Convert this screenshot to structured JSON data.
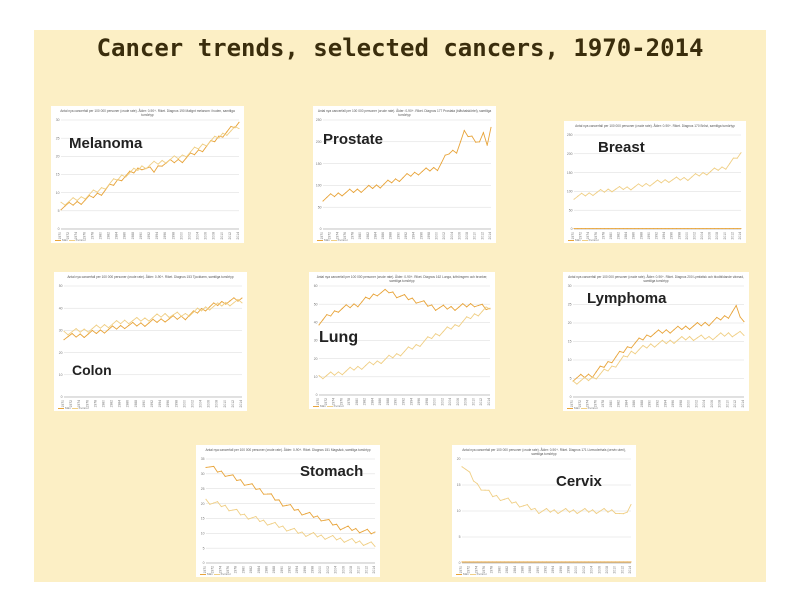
{
  "title": "Cancer trends, selected cancers, 1970-2014",
  "colors": {
    "men": "#e8a43a",
    "women": "#f0cf85",
    "background": "#fcefc5",
    "title": "#3a2d0c"
  },
  "legend": {
    "men": "Män",
    "women": "Kvinnor"
  },
  "chart_data": [
    {
      "id": "melanoma",
      "type": "line",
      "label": "Melanoma",
      "subtitle": "Antal nya cancerfall per 100 000 personer (crude rate). Ålder: 0-90+. Riket. Diagnos 190 Malignt melanom i huden, samtliga tumörtyp",
      "x_range": [
        1970,
        2014
      ],
      "ylim": [
        0,
        30
      ],
      "yticks": [
        0,
        5,
        10,
        15,
        20,
        25,
        30
      ],
      "series": [
        {
          "name": "Män",
          "keypoints": [
            [
              1970,
              6
            ],
            [
              1975,
              7.5
            ],
            [
              1980,
              10
            ],
            [
              1985,
              14
            ],
            [
              1990,
              17
            ],
            [
              1993,
              16
            ],
            [
              1995,
              18
            ],
            [
              2000,
              19
            ],
            [
              2005,
              22
            ],
            [
              2010,
              26
            ],
            [
              2014,
              29
            ]
          ]
        },
        {
          "name": "Kvinnor",
          "keypoints": [
            [
              1970,
              7
            ],
            [
              1975,
              8.5
            ],
            [
              1980,
              11
            ],
            [
              1985,
              14.5
            ],
            [
              1990,
              17
            ],
            [
              1995,
              18.5
            ],
            [
              2000,
              20
            ],
            [
              2005,
              23
            ],
            [
              2010,
              26
            ],
            [
              2014,
              28
            ]
          ]
        }
      ]
    },
    {
      "id": "prostate",
      "type": "line",
      "label": "Prostate",
      "subtitle": "Antal nya cancerfall per 100 000 personer (crude rate). Ålder: 0-90+. Riket. Diagnos 177 Prostata (blåshalskörtel), samtliga tumörtyp",
      "x_range": [
        1970,
        2014
      ],
      "ylim": [
        0,
        250
      ],
      "yticks": [
        0,
        50,
        100,
        150,
        200,
        250
      ],
      "series": [
        {
          "name": "Män",
          "keypoints": [
            [
              1970,
              70
            ],
            [
              1975,
              82
            ],
            [
              1980,
              90
            ],
            [
              1985,
              100
            ],
            [
              1990,
              115
            ],
            [
              1995,
              130
            ],
            [
              2000,
              140
            ],
            [
              2003,
              175
            ],
            [
              2005,
              180
            ],
            [
              2007,
              220
            ],
            [
              2009,
              210
            ],
            [
              2011,
              200
            ],
            [
              2012,
              215
            ],
            [
              2013,
              195
            ],
            [
              2014,
              230
            ]
          ]
        }
      ]
    },
    {
      "id": "breast",
      "type": "line",
      "label": "Breast",
      "subtitle": "Antal nya cancerfall per 100 000 personer (crude rate). Ålder: 0-90+. Riket. Diagnos 170 Bröst, samtliga tumörtyp",
      "x_range": [
        1970,
        2014
      ],
      "ylim": [
        0,
        250
      ],
      "yticks": [
        0,
        50,
        100,
        150,
        200,
        250
      ],
      "series": [
        {
          "name": "Kvinnor",
          "keypoints": [
            [
              1970,
              85
            ],
            [
              1975,
              95
            ],
            [
              1980,
              105
            ],
            [
              1985,
              110
            ],
            [
              1990,
              120
            ],
            [
              1995,
              130
            ],
            [
              2000,
              135
            ],
            [
              2005,
              150
            ],
            [
              2010,
              165
            ],
            [
              2014,
              200
            ]
          ]
        },
        {
          "name": "Män",
          "keypoints": [
            [
              1970,
              1
            ],
            [
              2014,
              1
            ]
          ]
        }
      ]
    },
    {
      "id": "colon",
      "type": "line",
      "label": "Colon",
      "subtitle": "Antal nya cancerfall per 100 000 personer (crude rate). Ålder: 0-90+. Riket. Diagnos 153 Tjocktarm, samtliga tumörtyp",
      "x_range": [
        1970,
        2014
      ],
      "ylim": [
        0,
        50
      ],
      "yticks": [
        0,
        10,
        20,
        30,
        40,
        50
      ],
      "series": [
        {
          "name": "Män",
          "keypoints": [
            [
              1970,
              27
            ],
            [
              1975,
              28
            ],
            [
              1980,
              30
            ],
            [
              1985,
              32
            ],
            [
              1990,
              33
            ],
            [
              1995,
              35
            ],
            [
              2000,
              36
            ],
            [
              2005,
              40
            ],
            [
              2010,
              43
            ],
            [
              2014,
              44
            ]
          ]
        },
        {
          "name": "Kvinnor",
          "keypoints": [
            [
              1970,
              29
            ],
            [
              1975,
              30
            ],
            [
              1980,
              32
            ],
            [
              1985,
              34
            ],
            [
              1990,
              35
            ],
            [
              1995,
              37
            ],
            [
              2000,
              37
            ],
            [
              2005,
              40
            ],
            [
              2010,
              42
            ],
            [
              2014,
              43
            ]
          ]
        }
      ]
    },
    {
      "id": "lung",
      "type": "line",
      "label": "Lung",
      "subtitle": "Antal nya cancerfall per 100 000 personer (crude rate). Ålder: 0-90+. Riket. Diagnos 162 Lunga, luftrörsgren och bronker, samtliga tumörtyp",
      "x_range": [
        1970,
        2014
      ],
      "ylim": [
        0,
        60
      ],
      "yticks": [
        0,
        10,
        20,
        30,
        40,
        50,
        60
      ],
      "series": [
        {
          "name": "Män",
          "keypoints": [
            [
              1970,
              40
            ],
            [
              1975,
              47
            ],
            [
              1980,
              50
            ],
            [
              1985,
              56
            ],
            [
              1988,
              57
            ],
            [
              1990,
              55
            ],
            [
              1995,
              52
            ],
            [
              2000,
              48
            ],
            [
              2005,
              48
            ],
            [
              2010,
              50
            ],
            [
              2014,
              47
            ]
          ]
        },
        {
          "name": "Kvinnor",
          "keypoints": [
            [
              1970,
              10
            ],
            [
              1975,
              12
            ],
            [
              1980,
              15
            ],
            [
              1985,
              18
            ],
            [
              1990,
              22
            ],
            [
              1995,
              27
            ],
            [
              2000,
              33
            ],
            [
              2005,
              38
            ],
            [
              2010,
              44
            ],
            [
              2014,
              48
            ]
          ]
        }
      ]
    },
    {
      "id": "lymphoma",
      "type": "line",
      "label": "Lymphoma",
      "subtitle": "Antal nya cancerfall per 100 000 personer (crude rate). Ålder: 0-90+. Riket. Diagnos 200 Lymfatisk och blodbildande vävnad, samtliga tumörtyp",
      "x_range": [
        1970,
        2014
      ],
      "ylim": [
        0,
        30
      ],
      "yticks": [
        0,
        5,
        10,
        15,
        20,
        25,
        30
      ],
      "series": [
        {
          "name": "Män",
          "keypoints": [
            [
              1970,
              5
            ],
            [
              1975,
              6
            ],
            [
              1980,
              10
            ],
            [
              1985,
              14
            ],
            [
              1990,
              17
            ],
            [
              1995,
              18
            ],
            [
              2000,
              19
            ],
            [
              2005,
              20
            ],
            [
              2010,
              22
            ],
            [
              2012,
              24
            ],
            [
              2014,
              20
            ]
          ]
        },
        {
          "name": "Kvinnor",
          "keypoints": [
            [
              1970,
              4
            ],
            [
              1975,
              5
            ],
            [
              1980,
              8
            ],
            [
              1985,
              12
            ],
            [
              1990,
              14
            ],
            [
              1995,
              15
            ],
            [
              2000,
              16
            ],
            [
              2005,
              16
            ],
            [
              2010,
              17
            ],
            [
              2014,
              17
            ]
          ]
        }
      ]
    },
    {
      "id": "stomach",
      "type": "line",
      "label": "Stomach",
      "subtitle": "Antal nya cancerfall per 100 000 personer (crude rate). Ålder: 0-90+. Riket. Diagnos 151 Magsäck, samtliga tumörtyp",
      "x_range": [
        1970,
        2014
      ],
      "ylim": [
        0,
        35
      ],
      "yticks": [
        0,
        5,
        10,
        15,
        20,
        25,
        30,
        35
      ],
      "series": [
        {
          "name": "Män",
          "keypoints": [
            [
              1970,
              33
            ],
            [
              1973,
              31
            ],
            [
              1975,
              30
            ],
            [
              1980,
              27
            ],
            [
              1985,
              24
            ],
            [
              1990,
              20
            ],
            [
              1995,
              17
            ],
            [
              2000,
              15
            ],
            [
              2005,
              12
            ],
            [
              2010,
              11
            ],
            [
              2014,
              10
            ]
          ]
        },
        {
          "name": "Kvinnor",
          "keypoints": [
            [
              1970,
              21
            ],
            [
              1975,
              19
            ],
            [
              1980,
              16
            ],
            [
              1985,
              14
            ],
            [
              1990,
              12
            ],
            [
              1995,
              10
            ],
            [
              2000,
              9
            ],
            [
              2005,
              8
            ],
            [
              2010,
              7
            ],
            [
              2014,
              6
            ]
          ]
        }
      ]
    },
    {
      "id": "cervix",
      "type": "line",
      "label": "Cervix",
      "subtitle": "Antal nya cancerfall per 100 000 personer (crude rate). Ålder: 0-90+. Riket. Diagnos 171 Livmoderhals (cervix uteri), samtliga tumörtyp",
      "x_range": [
        1970,
        2014
      ],
      "ylim": [
        0,
        20
      ],
      "yticks": [
        0,
        5,
        10,
        15,
        20
      ],
      "series": [
        {
          "name": "Kvinnor",
          "keypoints": [
            [
              1970,
              19
            ],
            [
              1972,
              17
            ],
            [
              1974,
              15
            ],
            [
              1978,
              13
            ],
            [
              1982,
              12
            ],
            [
              1986,
              11
            ],
            [
              1990,
              10
            ],
            [
              1995,
              10
            ],
            [
              2000,
              10
            ],
            [
              2005,
              10
            ],
            [
              2010,
              10
            ],
            [
              2012,
              9
            ],
            [
              2014,
              11
            ]
          ]
        },
        {
          "name": "Män",
          "keypoints": [
            [
              1970,
              0.2
            ],
            [
              2014,
              0.2
            ]
          ]
        }
      ]
    }
  ]
}
